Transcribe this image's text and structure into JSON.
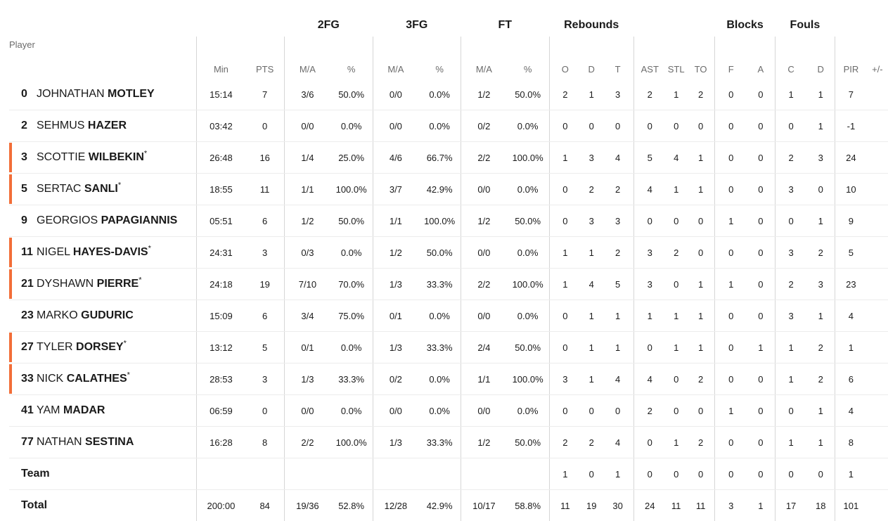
{
  "headers": {
    "groups": {
      "fg2": "2FG",
      "fg3": "3FG",
      "ft": "FT",
      "rebounds": "Rebounds",
      "blocks": "Blocks",
      "fouls": "Fouls"
    },
    "player": "Player",
    "min": "Min",
    "pts": "PTS",
    "fg2_ma": "M/A",
    "fg2_pct": "%",
    "fg3_ma": "M/A",
    "fg3_pct": "%",
    "ft_ma": "M/A",
    "ft_pct": "%",
    "reb_o": "O",
    "reb_d": "D",
    "reb_t": "T",
    "ast": "AST",
    "stl": "STL",
    "to": "TO",
    "blk_f": "F",
    "blk_a": "A",
    "foul_c": "C",
    "foul_d": "D",
    "pir": "PIR",
    "pm": "+/-"
  },
  "players": [
    {
      "num": "0",
      "first": "JOHNATHAN",
      "last": "MOTLEY",
      "starter": false,
      "min": "15:14",
      "pts": "7",
      "fg2_ma": "3/6",
      "fg2_pct": "50.0%",
      "fg3_ma": "0/0",
      "fg3_pct": "0.0%",
      "ft_ma": "1/2",
      "ft_pct": "50.0%",
      "o": "2",
      "d": "1",
      "t": "3",
      "ast": "2",
      "stl": "1",
      "to": "2",
      "bf": "0",
      "ba": "0",
      "fc": "1",
      "fd": "1",
      "pir": "7"
    },
    {
      "num": "2",
      "first": "SEHMUS",
      "last": "HAZER",
      "starter": false,
      "min": "03:42",
      "pts": "0",
      "fg2_ma": "0/0",
      "fg2_pct": "0.0%",
      "fg3_ma": "0/0",
      "fg3_pct": "0.0%",
      "ft_ma": "0/2",
      "ft_pct": "0.0%",
      "o": "0",
      "d": "0",
      "t": "0",
      "ast": "0",
      "stl": "0",
      "to": "0",
      "bf": "0",
      "ba": "0",
      "fc": "0",
      "fd": "1",
      "pir": "-1"
    },
    {
      "num": "3",
      "first": "SCOTTIE",
      "last": "WILBEKIN",
      "starter": true,
      "min": "26:48",
      "pts": "16",
      "fg2_ma": "1/4",
      "fg2_pct": "25.0%",
      "fg3_ma": "4/6",
      "fg3_pct": "66.7%",
      "ft_ma": "2/2",
      "ft_pct": "100.0%",
      "o": "1",
      "d": "3",
      "t": "4",
      "ast": "5",
      "stl": "4",
      "to": "1",
      "bf": "0",
      "ba": "0",
      "fc": "2",
      "fd": "3",
      "pir": "24"
    },
    {
      "num": "5",
      "first": "SERTAC",
      "last": "SANLI",
      "starter": true,
      "min": "18:55",
      "pts": "11",
      "fg2_ma": "1/1",
      "fg2_pct": "100.0%",
      "fg3_ma": "3/7",
      "fg3_pct": "42.9%",
      "ft_ma": "0/0",
      "ft_pct": "0.0%",
      "o": "0",
      "d": "2",
      "t": "2",
      "ast": "4",
      "stl": "1",
      "to": "1",
      "bf": "0",
      "ba": "0",
      "fc": "3",
      "fd": "0",
      "pir": "10"
    },
    {
      "num": "9",
      "first": "GEORGIOS",
      "last": "PAPAGIANNIS",
      "starter": false,
      "min": "05:51",
      "pts": "6",
      "fg2_ma": "1/2",
      "fg2_pct": "50.0%",
      "fg3_ma": "1/1",
      "fg3_pct": "100.0%",
      "ft_ma": "1/2",
      "ft_pct": "50.0%",
      "o": "0",
      "d": "3",
      "t": "3",
      "ast": "0",
      "stl": "0",
      "to": "0",
      "bf": "1",
      "ba": "0",
      "fc": "0",
      "fd": "1",
      "pir": "9"
    },
    {
      "num": "11",
      "first": "NIGEL",
      "last": "HAYES-DAVIS",
      "starter": true,
      "min": "24:31",
      "pts": "3",
      "fg2_ma": "0/3",
      "fg2_pct": "0.0%",
      "fg3_ma": "1/2",
      "fg3_pct": "50.0%",
      "ft_ma": "0/0",
      "ft_pct": "0.0%",
      "o": "1",
      "d": "1",
      "t": "2",
      "ast": "3",
      "stl": "2",
      "to": "0",
      "bf": "0",
      "ba": "0",
      "fc": "3",
      "fd": "2",
      "pir": "5"
    },
    {
      "num": "21",
      "first": "DYSHAWN",
      "last": "PIERRE",
      "starter": true,
      "min": "24:18",
      "pts": "19",
      "fg2_ma": "7/10",
      "fg2_pct": "70.0%",
      "fg3_ma": "1/3",
      "fg3_pct": "33.3%",
      "ft_ma": "2/2",
      "ft_pct": "100.0%",
      "o": "1",
      "d": "4",
      "t": "5",
      "ast": "3",
      "stl": "0",
      "to": "1",
      "bf": "1",
      "ba": "0",
      "fc": "2",
      "fd": "3",
      "pir": "23"
    },
    {
      "num": "23",
      "first": "MARKO",
      "last": "GUDURIC",
      "starter": false,
      "min": "15:09",
      "pts": "6",
      "fg2_ma": "3/4",
      "fg2_pct": "75.0%",
      "fg3_ma": "0/1",
      "fg3_pct": "0.0%",
      "ft_ma": "0/0",
      "ft_pct": "0.0%",
      "o": "0",
      "d": "1",
      "t": "1",
      "ast": "1",
      "stl": "1",
      "to": "1",
      "bf": "0",
      "ba": "0",
      "fc": "3",
      "fd": "1",
      "pir": "4"
    },
    {
      "num": "27",
      "first": "TYLER",
      "last": "DORSEY",
      "starter": true,
      "min": "13:12",
      "pts": "5",
      "fg2_ma": "0/1",
      "fg2_pct": "0.0%",
      "fg3_ma": "1/3",
      "fg3_pct": "33.3%",
      "ft_ma": "2/4",
      "ft_pct": "50.0%",
      "o": "0",
      "d": "1",
      "t": "1",
      "ast": "0",
      "stl": "1",
      "to": "1",
      "bf": "0",
      "ba": "1",
      "fc": "1",
      "fd": "2",
      "pir": "1"
    },
    {
      "num": "33",
      "first": "NICK",
      "last": "CALATHES",
      "starter": true,
      "min": "28:53",
      "pts": "3",
      "fg2_ma": "1/3",
      "fg2_pct": "33.3%",
      "fg3_ma": "0/2",
      "fg3_pct": "0.0%",
      "ft_ma": "1/1",
      "ft_pct": "100.0%",
      "o": "3",
      "d": "1",
      "t": "4",
      "ast": "4",
      "stl": "0",
      "to": "2",
      "bf": "0",
      "ba": "0",
      "fc": "1",
      "fd": "2",
      "pir": "6"
    },
    {
      "num": "41",
      "first": "YAM",
      "last": "MADAR",
      "starter": false,
      "min": "06:59",
      "pts": "0",
      "fg2_ma": "0/0",
      "fg2_pct": "0.0%",
      "fg3_ma": "0/0",
      "fg3_pct": "0.0%",
      "ft_ma": "0/0",
      "ft_pct": "0.0%",
      "o": "0",
      "d": "0",
      "t": "0",
      "ast": "2",
      "stl": "0",
      "to": "0",
      "bf": "1",
      "ba": "0",
      "fc": "0",
      "fd": "1",
      "pir": "4"
    },
    {
      "num": "77",
      "first": "NATHAN",
      "last": "SESTINA",
      "starter": false,
      "min": "16:28",
      "pts": "8",
      "fg2_ma": "2/2",
      "fg2_pct": "100.0%",
      "fg3_ma": "1/3",
      "fg3_pct": "33.3%",
      "ft_ma": "1/2",
      "ft_pct": "50.0%",
      "o": "2",
      "d": "2",
      "t": "4",
      "ast": "0",
      "stl": "1",
      "to": "2",
      "bf": "0",
      "ba": "0",
      "fc": "1",
      "fd": "1",
      "pir": "8"
    }
  ],
  "team": {
    "label": "Team",
    "o": "1",
    "d": "0",
    "t": "1",
    "ast": "0",
    "stl": "0",
    "to": "0",
    "bf": "0",
    "ba": "0",
    "fc": "0",
    "fd": "0",
    "pir": "1"
  },
  "total": {
    "label": "Total",
    "min": "200:00",
    "pts": "84",
    "fg2_ma": "19/36",
    "fg2_pct": "52.8%",
    "fg3_ma": "12/28",
    "fg3_pct": "42.9%",
    "ft_ma": "10/17",
    "ft_pct": "58.8%",
    "o": "11",
    "d": "19",
    "t": "30",
    "ast": "24",
    "stl": "11",
    "to": "11",
    "bf": "3",
    "ba": "1",
    "fc": "17",
    "fd": "18",
    "pir": "101"
  },
  "colors": {
    "starter_marker": "#f26e38",
    "divider": "#d6d6d6"
  }
}
